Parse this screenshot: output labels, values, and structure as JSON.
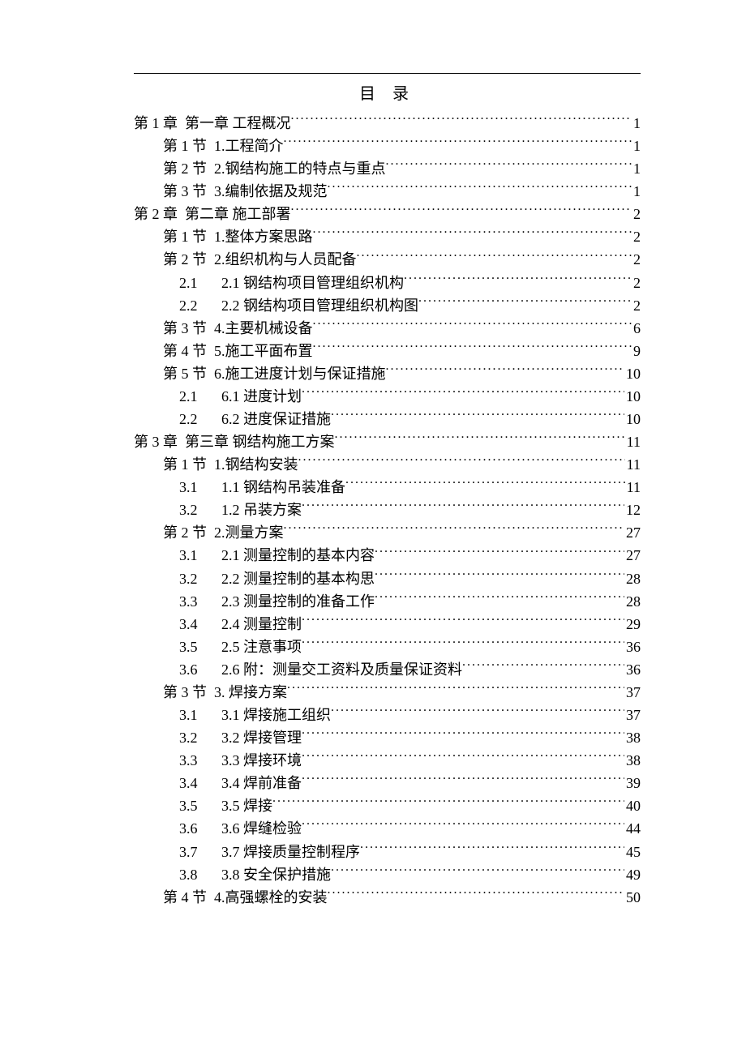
{
  "title": "目 录",
  "toc": [
    {
      "level": 0,
      "num": "第 1 章",
      "title": "第一章 工程概况",
      "page": "1"
    },
    {
      "level": 1,
      "num": "第 1 节",
      "title": "1.工程简介",
      "page": "1"
    },
    {
      "level": 1,
      "num": "第 2 节",
      "title": "2.钢结构施工的特点与重点",
      "page": "1"
    },
    {
      "level": 1,
      "num": "第 3 节",
      "title": "3.编制依据及规范",
      "page": "1"
    },
    {
      "level": 0,
      "num": "第 2 章",
      "title": "第二章 施工部署",
      "page": "2"
    },
    {
      "level": 1,
      "num": "第 1 节",
      "title": "1.整体方案思路",
      "page": "2"
    },
    {
      "level": 1,
      "num": "第 2 节",
      "title": "2.组织机构与人员配备",
      "page": "2"
    },
    {
      "level": 2,
      "num": "2.1",
      "title": "2.1 钢结构项目管理组织机构",
      "page": "2"
    },
    {
      "level": 2,
      "num": "2.2",
      "title": "2.2 钢结构项目管理组织机构图",
      "page": "2"
    },
    {
      "level": 1,
      "num": "第 3 节",
      "title": "4.主要机械设备",
      "page": "6"
    },
    {
      "level": 1,
      "num": "第 4 节",
      "title": "5.施工平面布置",
      "page": "9"
    },
    {
      "level": 1,
      "num": "第 5 节",
      "title": "6.施工进度计划与保证措施",
      "page": "10"
    },
    {
      "level": 2,
      "num": "2.1",
      "title": "6.1 进度计划",
      "page": "10"
    },
    {
      "level": 2,
      "num": "2.2",
      "title": "6.2 进度保证措施",
      "page": "10"
    },
    {
      "level": 0,
      "num": "第 3 章",
      "title": "第三章 钢结构施工方案",
      "page": "11"
    },
    {
      "level": 1,
      "num": "第 1 节",
      "title": "1.钢结构安装",
      "page": "11"
    },
    {
      "level": 2,
      "num": "3.1",
      "title": "1.1 钢结构吊装准备",
      "page": "11"
    },
    {
      "level": 2,
      "num": "3.2",
      "title": "1.2 吊装方案",
      "page": "12"
    },
    {
      "level": 1,
      "num": "第 2 节",
      "title": "2.测量方案",
      "page": "27"
    },
    {
      "level": 2,
      "num": "3.1",
      "title": "2.1 测量控制的基本内容",
      "page": "27"
    },
    {
      "level": 2,
      "num": "3.2",
      "title": "2.2 测量控制的基本构思",
      "page": "28"
    },
    {
      "level": 2,
      "num": "3.3",
      "title": "2.3 测量控制的准备工作",
      "page": "28"
    },
    {
      "level": 2,
      "num": "3.4",
      "title": "2.4 测量控制",
      "page": "29"
    },
    {
      "level": 2,
      "num": "3.5",
      "title": "2.5 注意事项",
      "page": "36"
    },
    {
      "level": 2,
      "num": "3.6",
      "title": "2.6 附：测量交工资料及质量保证资料",
      "page": "36"
    },
    {
      "level": 1,
      "num": "第 3 节",
      "title": "3. 焊接方案",
      "page": "37"
    },
    {
      "level": 2,
      "num": "3.1",
      "title": "3.1 焊接施工组织",
      "page": "37"
    },
    {
      "level": 2,
      "num": "3.2",
      "title": "3.2 焊接管理",
      "page": "38"
    },
    {
      "level": 2,
      "num": "3.3",
      "title": "3.3 焊接环境",
      "page": "38"
    },
    {
      "level": 2,
      "num": "3.4",
      "title": "3.4 焊前准备",
      "page": "39"
    },
    {
      "level": 2,
      "num": "3.5",
      "title": "3.5 焊接",
      "page": "40"
    },
    {
      "level": 2,
      "num": "3.6",
      "title": "3.6 焊缝检验",
      "page": "44"
    },
    {
      "level": 2,
      "num": "3.7",
      "title": "3.7 焊接质量控制程序",
      "page": "45"
    },
    {
      "level": 2,
      "num": "3.8",
      "title": "3.8 安全保护措施",
      "page": "49"
    },
    {
      "level": 1,
      "num": "第 4 节",
      "title": "4.高强螺栓的安装",
      "page": "50"
    }
  ]
}
